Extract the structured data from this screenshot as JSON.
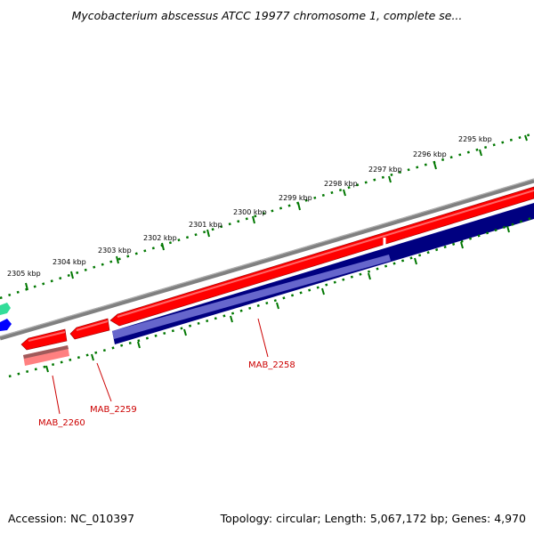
{
  "title": "Mycobacterium abscessus ATCC 19977 chromosome 1, complete se...",
  "footer": {
    "accession": "Accession: NC_010397",
    "summary": "Topology: circular; Length: 5,067,172 bp; Genes: 4,970"
  },
  "scale_labels": [
    "2295 kbp",
    "2296 kbp",
    "2297 kbp",
    "2298 kbp",
    "2299 kbp",
    "2300 kbp",
    "2301 kbp",
    "2302 kbp",
    "2303 kbp",
    "2304 kbp",
    "2305 kbp"
  ],
  "gene_labels": [
    "MAB_2258",
    "MAB_2259",
    "MAB_2260"
  ],
  "colors": {
    "backbone": "#808080",
    "cds": "#ff0000",
    "cds_dark": "#cc0000",
    "gene_navy": "#000080",
    "gene_blue": "#6666cc",
    "pink": "#ff8080",
    "ticks": "#007700",
    "label_red": "#cc0000",
    "teal": "#33dd99",
    "blue": "#0000ff"
  }
}
